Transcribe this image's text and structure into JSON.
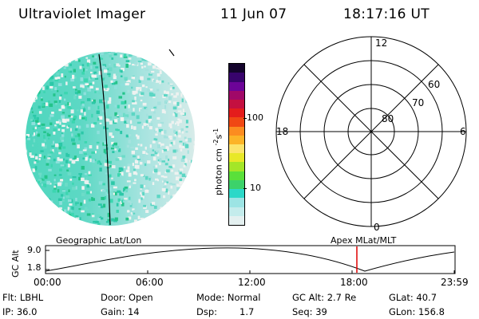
{
  "header": {
    "instrument": "Ultraviolet Imager",
    "date": "11 Jun 07",
    "time": "18:17:16 UT"
  },
  "colorbar": {
    "unit_label": "photon cm",
    "unit_exp1": "-2",
    "unit_mid": "s",
    "unit_exp2": "-1",
    "ticks": [
      {
        "label": "100",
        "value": 100
      },
      {
        "label": "10",
        "value": 10
      }
    ],
    "colors": [
      "#e4f0f0",
      "#c4ecec",
      "#9ce4e4",
      "#2cd8c8",
      "#3cd26a",
      "#5ae03a",
      "#a4e628",
      "#e8e828",
      "#fce46c",
      "#fcb428",
      "#fc8c20",
      "#f04814",
      "#e41c1c",
      "#c41040",
      "#a00868",
      "#6c0498",
      "#38046c",
      "#14042c"
    ]
  },
  "polar": {
    "rings": [
      "80",
      "70",
      "60"
    ],
    "clock": {
      "top": "12",
      "bottom": "0",
      "left": "18",
      "right": "6"
    }
  },
  "timeline": {
    "left_title": "Geographic Lat/Lon",
    "right_title": "Apex MLat/MLT",
    "yaxis_title": "GC Alt",
    "ytick_top": "9.0",
    "ytick_bottom": "1.8",
    "xticks": [
      "00:00",
      "06:00",
      "12:00",
      "18:00",
      "23:59"
    ],
    "marker_color": "#e00000"
  },
  "status": {
    "flt": "Flt: LBHL",
    "ip": "IP: 36.0",
    "door": "Door: Open",
    "gain": "Gain: 14",
    "mode": "Mode: Normal",
    "dsp_label": "Dsp:",
    "dsp_value": "1.7",
    "gc_alt": "GC Alt: 2.7 Re",
    "seq": "Seq: 39",
    "glat": "GLat: 40.7",
    "glon": "GLon: 156.8"
  }
}
